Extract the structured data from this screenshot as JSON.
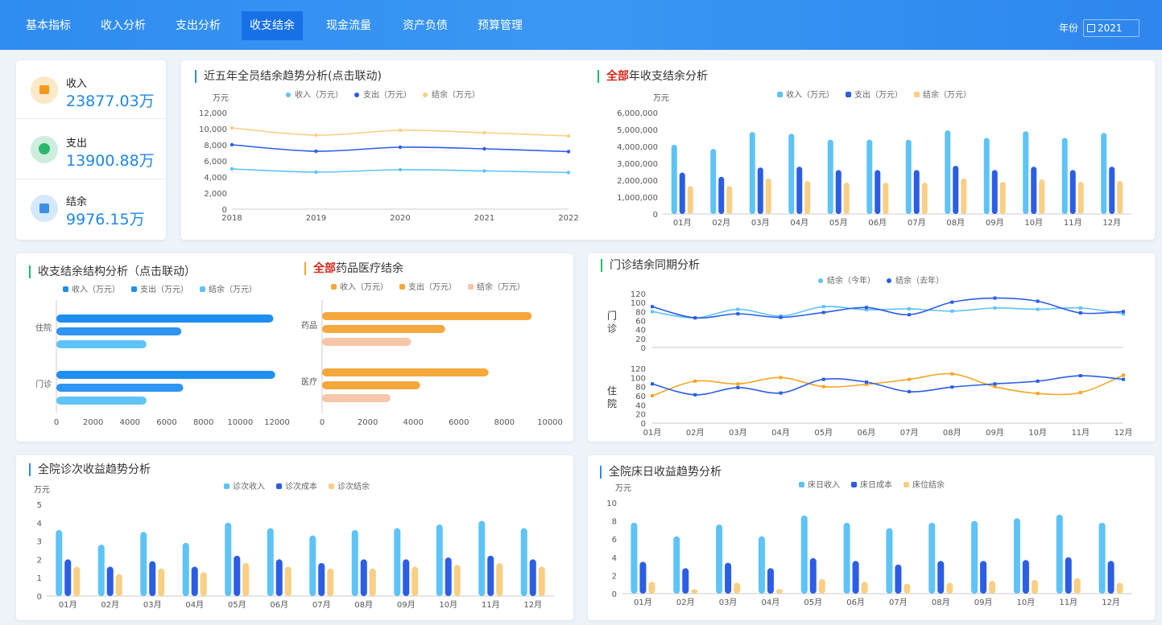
{
  "nav": {
    "tabs": [
      "基本指标",
      "收入分析",
      "支出分析",
      "收支结余",
      "现金流量",
      "资产负债",
      "预算管理"
    ],
    "active_index": 3,
    "year_label": "年份",
    "year_value": "2021"
  },
  "kpis": [
    {
      "label": "收入",
      "value": "23877.03万",
      "icon": "wallet-icon"
    },
    {
      "label": "支出",
      "value": "13900.88万",
      "icon": "coin-hand-icon"
    },
    {
      "label": "结余",
      "value": "9976.15万",
      "icon": "box-icon"
    }
  ],
  "colors": {
    "income": "#5ec3f7",
    "expense": "#2c5de5",
    "balance": "#f9cf85",
    "orange": "#f5a83c",
    "peach": "#f7c6a8",
    "blue": "#1f8ef1"
  },
  "panels": {
    "trend": {
      "title": "近五年全员结余趋势分析(点击联动)"
    },
    "monthly": {
      "title_red": "全部",
      "title_rest": "年收支结余分析"
    },
    "structure": {
      "title": "收支结余结构分析（点击联动）"
    },
    "drug": {
      "title_red": "全部",
      "title_rest": "药品医疗结余"
    },
    "outpatient": {
      "title": "门诊结余同期分析"
    },
    "visits": {
      "title": "全院诊次收益趋势分析"
    },
    "beds": {
      "title": "全院床日收益趋势分析"
    }
  },
  "chart_data": [
    {
      "id": "trend",
      "type": "line",
      "ylabel": "万元",
      "ylim": [
        0,
        12000
      ],
      "yticks": [
        "0",
        "2,000",
        "4,000",
        "6,000",
        "8,000",
        "10,000",
        "12,000"
      ],
      "x": [
        "2018",
        "2019",
        "2020",
        "2021",
        "2022"
      ],
      "series": [
        {
          "name": "收入（万元）",
          "values": [
            5000,
            4600,
            4900,
            4750,
            4550
          ]
        },
        {
          "name": "支出（万元）",
          "values": [
            8000,
            7200,
            7700,
            7500,
            7150
          ]
        },
        {
          "name": "结余（万元）",
          "values": [
            10100,
            9200,
            9800,
            9500,
            9100
          ]
        }
      ]
    },
    {
      "id": "monthly",
      "type": "bar",
      "ylabel": "万元",
      "ylim": [
        0,
        6000000
      ],
      "yticks": [
        "0",
        "1,000,000",
        "2,000,000",
        "3,000,000",
        "4,000,000",
        "5,000,000",
        "6,000,000"
      ],
      "categories": [
        "01月",
        "02月",
        "03月",
        "04月",
        "05月",
        "06月",
        "07月",
        "08月",
        "09月",
        "10月",
        "11月",
        "12月"
      ],
      "series": [
        {
          "name": "收入（万元）",
          "values": [
            4100000,
            3850000,
            4850000,
            4750000,
            4400000,
            4400000,
            4400000,
            4950000,
            4500000,
            4900000,
            4500000,
            4800000
          ]
        },
        {
          "name": "支出（万元）",
          "values": [
            2450000,
            2200000,
            2750000,
            2800000,
            2600000,
            2600000,
            2600000,
            2850000,
            2600000,
            2800000,
            2600000,
            2800000
          ]
        },
        {
          "name": "结余（万元）",
          "values": [
            1650000,
            1650000,
            2100000,
            1950000,
            1850000,
            1850000,
            1850000,
            2100000,
            1900000,
            2050000,
            1900000,
            1950000
          ]
        }
      ]
    },
    {
      "id": "structure",
      "type": "bar",
      "orientation": "horizontal",
      "xlim": [
        0,
        12000
      ],
      "xticks": [
        "0",
        "2000",
        "4000",
        "6000",
        "8000",
        "10000",
        "12000"
      ],
      "categories": [
        "住院",
        "门诊"
      ],
      "series": [
        {
          "name": "收入（万元）",
          "values": [
            11800,
            11900
          ]
        },
        {
          "name": "支出（万元）",
          "values": [
            6800,
            6900
          ]
        },
        {
          "name": "结余（万元）",
          "values": [
            4900,
            4900
          ]
        }
      ]
    },
    {
      "id": "drug",
      "type": "bar",
      "orientation": "horizontal",
      "xlim": [
        0,
        10000
      ],
      "xticks": [
        "0",
        "2000",
        "4000",
        "6000",
        "8000",
        "10000"
      ],
      "categories": [
        "药品",
        "医疗"
      ],
      "series": [
        {
          "name": "收入（万元）",
          "values": [
            9200,
            7300
          ]
        },
        {
          "name": "支出（万元）",
          "values": [
            5400,
            4300
          ]
        },
        {
          "name": "结余（万元）",
          "values": [
            3900,
            3000
          ]
        }
      ]
    },
    {
      "id": "outpatient",
      "type": "line",
      "ylim": [
        0,
        120
      ],
      "yticks": [
        "0",
        "20",
        "40",
        "60",
        "80",
        "100",
        "120"
      ],
      "x": [
        "01月",
        "02月",
        "03月",
        "04月",
        "05月",
        "06月",
        "07月",
        "08月",
        "09月",
        "10月",
        "11月",
        "12月"
      ],
      "panels": [
        {
          "label": "门诊",
          "series": [
            {
              "name": "结余（今年）",
              "values": [
                80,
                66,
                85,
                70,
                91,
                84,
                86,
                81,
                88,
                85,
                88,
                75
              ]
            },
            {
              "name": "结余（去年）",
              "values": [
                91,
                66,
                75,
                67,
                78,
                89,
                73,
                101,
                110,
                103,
                77,
                80
              ]
            }
          ]
        },
        {
          "label": "住院",
          "series": [
            {
              "name": "结余（今年）",
              "values": [
                60,
                92,
                86,
                100,
                80,
                85,
                96,
                108,
                80,
                65,
                67,
                105
              ]
            },
            {
              "name": "结余（去年）",
              "values": [
                86,
                62,
                78,
                66,
                96,
                90,
                69,
                79,
                86,
                92,
                104,
                96
              ]
            }
          ]
        }
      ]
    },
    {
      "id": "visits",
      "type": "bar",
      "ylabel": "万元",
      "ylim": [
        0,
        5
      ],
      "yticks": [
        "0",
        "1",
        "2",
        "3",
        "4",
        "5"
      ],
      "categories": [
        "01月",
        "02月",
        "03月",
        "04月",
        "05月",
        "06月",
        "07月",
        "08月",
        "09月",
        "10月",
        "11月",
        "12月"
      ],
      "series": [
        {
          "name": "诊次收入",
          "values": [
            3.6,
            2.8,
            3.5,
            2.9,
            4.0,
            3.7,
            3.3,
            3.6,
            3.7,
            3.9,
            4.1,
            3.7
          ]
        },
        {
          "name": "诊次成本",
          "values": [
            2.0,
            1.6,
            1.9,
            1.6,
            2.2,
            2.0,
            1.8,
            2.0,
            2.0,
            2.1,
            2.2,
            2.0
          ]
        },
        {
          "name": "诊次结余",
          "values": [
            1.6,
            1.2,
            1.5,
            1.3,
            1.8,
            1.6,
            1.5,
            1.5,
            1.6,
            1.7,
            1.8,
            1.6
          ]
        }
      ]
    },
    {
      "id": "beds",
      "type": "bar",
      "ylabel": "万元",
      "ylim": [
        0,
        10
      ],
      "yticks": [
        "0",
        "2",
        "4",
        "6",
        "8",
        "10"
      ],
      "categories": [
        "01月",
        "02月",
        "03月",
        "04月",
        "05月",
        "06月",
        "07月",
        "08月",
        "09月",
        "10月",
        "11月",
        "12月"
      ],
      "series": [
        {
          "name": "床日收入",
          "values": [
            7.8,
            6.3,
            7.6,
            6.3,
            8.6,
            7.8,
            7.2,
            7.8,
            8.0,
            8.3,
            8.7,
            7.8
          ]
        },
        {
          "name": "床日成本",
          "values": [
            3.5,
            2.8,
            3.4,
            2.8,
            3.9,
            3.6,
            3.2,
            3.6,
            3.6,
            3.7,
            4.0,
            3.6
          ]
        },
        {
          "name": "床位结余",
          "values": [
            1.3,
            0.5,
            1.2,
            0.5,
            1.6,
            1.3,
            1.1,
            1.2,
            1.4,
            1.5,
            1.7,
            1.2
          ]
        }
      ]
    }
  ]
}
